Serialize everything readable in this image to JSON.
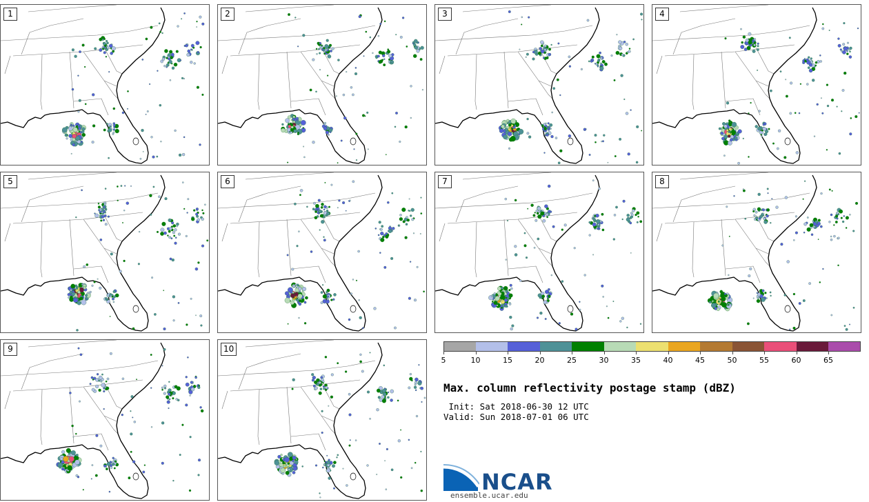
{
  "panels": [
    {
      "label": "1"
    },
    {
      "label": "2"
    },
    {
      "label": "3"
    },
    {
      "label": "4"
    },
    {
      "label": "5"
    },
    {
      "label": "6"
    },
    {
      "label": "7"
    },
    {
      "label": "8"
    },
    {
      "label": "9"
    },
    {
      "label": "10"
    }
  ],
  "colorbar": {
    "ticks": [
      "5",
      "10",
      "15",
      "20",
      "25",
      "30",
      "35",
      "40",
      "45",
      "50",
      "55",
      "60",
      "65"
    ],
    "colors": [
      "#a6a6a6",
      "#b3bfe9",
      "#5660d8",
      "#4e9197",
      "#008000",
      "#b8dbb6",
      "#ece070",
      "#eaa620",
      "#b47a32",
      "#8a5435",
      "#ea4f79",
      "#6a1a3a",
      "#aa4cab"
    ]
  },
  "title": "Max. column reflectivity postage stamp (dBZ)",
  "init_line": " Init: Sat 2018-06-30 12 UTC",
  "valid_line": "Valid: Sun 2018-07-01 06 UTC",
  "logo": {
    "wordmark": "NCAR",
    "url": "ensemble.ucar.edu",
    "colors": {
      "blue": "#1a4f8b",
      "light": "#4a90c8"
    }
  }
}
